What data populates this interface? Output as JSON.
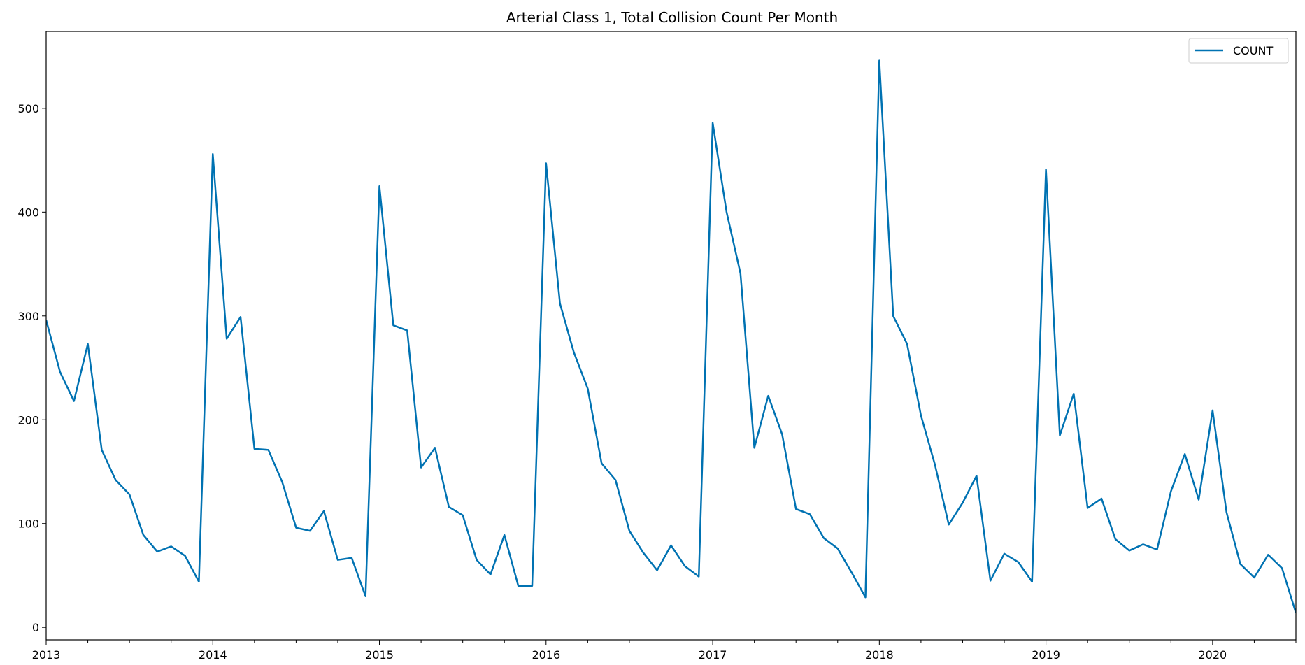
{
  "chart_data": {
    "type": "line",
    "title": "Arterial Class 1, Total Collision Count Per Month",
    "xlabel": "",
    "ylabel": "",
    "x_start": "2013-01",
    "x_end": "2020-07",
    "xlim": [
      "2013-01",
      "2020-07"
    ],
    "ylim": [
      -12,
      574
    ],
    "x_tick_labels": [
      "2013",
      "2014",
      "2015",
      "2016",
      "2017",
      "2018",
      "2019",
      "2020"
    ],
    "y_ticks": [
      0,
      100,
      200,
      300,
      400,
      500
    ],
    "grid": false,
    "legend": {
      "position": "top-right",
      "entries": [
        "COUNT"
      ]
    },
    "line_color": "#0072b2",
    "series": [
      {
        "name": "COUNT",
        "x": [
          "2013-01",
          "2013-02",
          "2013-03",
          "2013-04",
          "2013-05",
          "2013-06",
          "2013-07",
          "2013-08",
          "2013-09",
          "2013-10",
          "2013-11",
          "2013-12",
          "2014-01",
          "2014-02",
          "2014-03",
          "2014-04",
          "2014-05",
          "2014-06",
          "2014-07",
          "2014-08",
          "2014-09",
          "2014-10",
          "2014-11",
          "2014-12",
          "2015-01",
          "2015-02",
          "2015-03",
          "2015-04",
          "2015-05",
          "2015-06",
          "2015-07",
          "2015-08",
          "2015-09",
          "2015-10",
          "2015-11",
          "2015-12",
          "2016-01",
          "2016-02",
          "2016-03",
          "2016-04",
          "2016-05",
          "2016-06",
          "2016-07",
          "2016-08",
          "2016-09",
          "2016-10",
          "2016-11",
          "2016-12",
          "2017-01",
          "2017-02",
          "2017-03",
          "2017-04",
          "2017-05",
          "2017-06",
          "2017-07",
          "2017-08",
          "2017-09",
          "2017-10",
          "2017-11",
          "2017-12",
          "2018-01",
          "2018-02",
          "2018-03",
          "2018-04",
          "2018-05",
          "2018-06",
          "2018-07",
          "2018-08",
          "2018-09",
          "2018-10",
          "2018-11",
          "2018-12",
          "2019-01",
          "2019-02",
          "2019-03",
          "2019-04",
          "2019-05",
          "2019-06",
          "2019-07",
          "2019-08",
          "2019-09",
          "2019-10",
          "2019-11",
          "2019-12",
          "2020-01",
          "2020-02",
          "2020-03",
          "2020-04",
          "2020-05",
          "2020-06",
          "2020-07"
        ],
        "values": [
          296,
          246,
          218,
          273,
          171,
          142,
          128,
          89,
          73,
          78,
          69,
          44,
          456,
          278,
          299,
          172,
          171,
          140,
          96,
          93,
          112,
          65,
          67,
          30,
          425,
          291,
          286,
          154,
          173,
          116,
          108,
          65,
          51,
          89,
          40,
          40,
          447,
          312,
          265,
          230,
          158,
          142,
          93,
          72,
          55,
          79,
          59,
          49,
          486,
          400,
          341,
          173,
          223,
          186,
          114,
          109,
          86,
          76,
          53,
          29,
          546,
          300,
          273,
          204,
          157,
          99,
          120,
          146,
          45,
          71,
          63,
          44,
          441,
          185,
          225,
          115,
          124,
          85,
          74,
          80,
          75,
          131,
          167,
          123,
          209,
          111,
          61,
          48,
          70,
          57,
          14
        ]
      }
    ]
  }
}
